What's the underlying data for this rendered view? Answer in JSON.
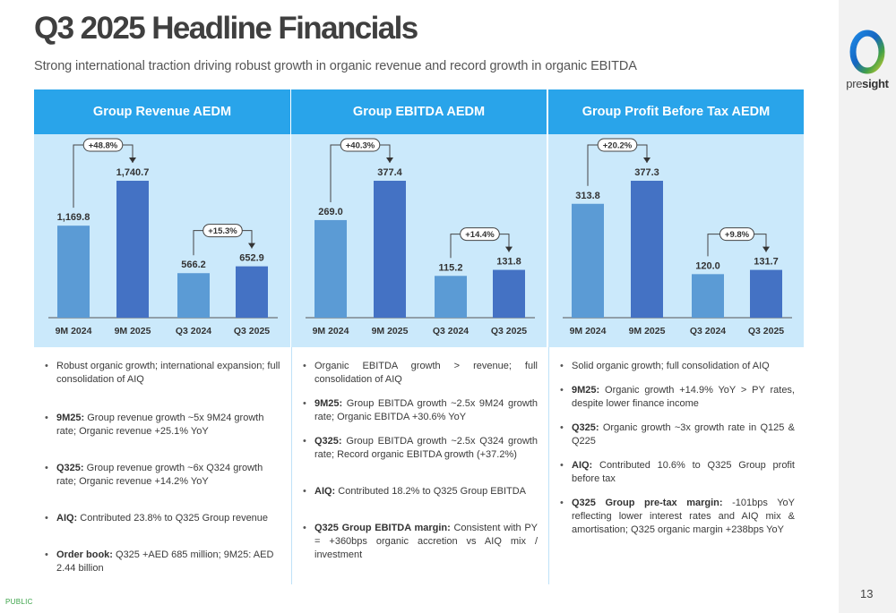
{
  "header": {
    "title": "Q3 2025 Headline Financials",
    "subtitle": "Strong international traction driving robust growth in organic revenue and record growth in organic EBITDA"
  },
  "logo": {
    "text_light": "pre",
    "text_bold": "sight"
  },
  "footer": {
    "classification": "PUBLIC",
    "page_number": "13"
  },
  "colors": {
    "header_blue": "#29a4ea",
    "chart_bg": "#cbe9fb",
    "bar_prior": "#5b9bd5",
    "bar_current": "#4472c4"
  },
  "chart_data": [
    {
      "type": "bar",
      "title": "Group Revenue AEDM",
      "categories": [
        "9M 2024",
        "9M 2025",
        "Q3 2024",
        "Q3 2025"
      ],
      "values": [
        1169.8,
        1740.7,
        566.2,
        652.9
      ],
      "value_labels": [
        "1,169.8",
        "1,740.7",
        "566.2",
        "652.9"
      ],
      "growth": [
        {
          "from": 0,
          "to": 1,
          "label": "+48.8%"
        },
        {
          "from": 2,
          "to": 3,
          "label": "+15.3%"
        }
      ]
    },
    {
      "type": "bar",
      "title": "Group EBITDA AEDM",
      "categories": [
        "9M 2024",
        "9M 2025",
        "Q3 2024",
        "Q3 2025"
      ],
      "values": [
        269.0,
        377.4,
        115.2,
        131.8
      ],
      "value_labels": [
        "269.0",
        "377.4",
        "115.2",
        "131.8"
      ],
      "growth": [
        {
          "from": 0,
          "to": 1,
          "label": "+40.3%"
        },
        {
          "from": 2,
          "to": 3,
          "label": "+14.4%"
        }
      ]
    },
    {
      "type": "bar",
      "title": "Group Profit Before Tax AEDM",
      "categories": [
        "9M 2024",
        "9M 2025",
        "Q3 2024",
        "Q3 2025"
      ],
      "values": [
        313.8,
        377.3,
        120.0,
        131.7
      ],
      "value_labels": [
        "313.8",
        "377.3",
        "120.0",
        "131.7"
      ],
      "growth": [
        {
          "from": 0,
          "to": 1,
          "label": "+20.2%"
        },
        {
          "from": 2,
          "to": 3,
          "label": "+9.8%"
        }
      ]
    }
  ],
  "panels": [
    {
      "bullets": [
        {
          "bold": "",
          "text": "Robust organic growth; international expansion; full consolidation of AIQ"
        },
        {
          "bold": "9M25:",
          "text": " Group revenue growth ~5x 9M24 growth rate; Organic revenue +25.1% YoY"
        },
        {
          "bold": "Q325:",
          "text": " Group revenue growth ~6x Q324 growth rate; Organic revenue +14.2% YoY"
        },
        {
          "bold": "AIQ:",
          "text": " Contributed 23.8% to Q325 Group revenue"
        },
        {
          "bold": "Order book:",
          "text": " Q325 +AED 685 million; 9M25: AED 2.44 billion"
        }
      ]
    },
    {
      "bullets": [
        {
          "bold": "",
          "text": "Organic EBITDA growth > revenue; full consolidation of AIQ"
        },
        {
          "bold": "9M25:",
          "text": " Group EBITDA growth ~2.5x 9M24 growth rate; Organic EBITDA +30.6% YoY"
        },
        {
          "bold": "Q325:",
          "text": " Group EBITDA growth ~2.5x Q324 growth rate; Record organic EBITDA growth (+37.2%)"
        },
        {
          "bold": "AIQ:",
          "text": " Contributed 18.2% to Q325 Group EBITDA"
        },
        {
          "bold": "Q325 Group EBITDA margin:",
          "text": " Consistent with PY = +360bps organic accretion vs AIQ mix / investment"
        }
      ]
    },
    {
      "bullets": [
        {
          "bold": "",
          "text": "Solid organic growth; full consolidation of AIQ"
        },
        {
          "bold": "9M25:",
          "text": " Organic growth +14.9% YoY > PY rates, despite lower finance income"
        },
        {
          "bold": "Q325:",
          "text": " Organic growth ~3x growth rate in Q125 & Q225"
        },
        {
          "bold": "AIQ:",
          "text": " Contributed 10.6% to Q325 Group profit before tax"
        },
        {
          "bold": "Q325 Group pre-tax margin:",
          "text": " -101bps YoY reflecting lower interest rates and AIQ mix & amortisation; Q325 organic margin +238bps YoY"
        }
      ]
    }
  ]
}
